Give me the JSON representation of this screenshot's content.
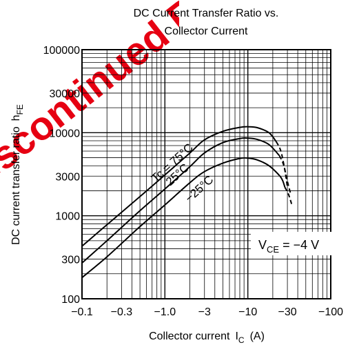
{
  "chart_data": {
    "type": "line",
    "title": "DC Current Transfer Ratio vs.",
    "subtitle": "Collector Current",
    "xlabel_main": "Collector current",
    "xlabel_sym": "I",
    "xlabel_sub": "C",
    "xlabel_unit": "(A)",
    "ylabel_main": "DC current transfer ratio",
    "ylabel_sym": "h",
    "ylabel_sub": "FE",
    "x_scale": "log",
    "y_scale": "log",
    "xlim": [
      -0.1,
      -100
    ],
    "ylim": [
      100,
      100000
    ],
    "grid": true,
    "x_ticks": [
      {
        "value": -0.1,
        "label": "−0.1"
      },
      {
        "value": -0.3,
        "label": "−0.3"
      },
      {
        "value": -1,
        "label": "−1.0"
      },
      {
        "value": -3,
        "label": "−3"
      },
      {
        "value": -10,
        "label": "−10"
      },
      {
        "value": -30,
        "label": "−30"
      },
      {
        "value": -100,
        "label": "−100"
      }
    ],
    "y_ticks": [
      {
        "value": 100,
        "label": "100"
      },
      {
        "value": 300,
        "label": "300"
      },
      {
        "value": 1000,
        "label": "1000"
      },
      {
        "value": 3000,
        "label": "3000"
      },
      {
        "value": 10000,
        "label": "10000"
      },
      {
        "value": 30000,
        "label": "30000"
      },
      {
        "value": 100000,
        "label": "100000"
      }
    ],
    "condition": {
      "prefix": "V",
      "sub": "CE",
      "rest": " = −4 V"
    },
    "series": [
      {
        "name": "Tc = 75°C",
        "points": [
          [
            -0.1,
            430
          ],
          [
            -0.2,
            780
          ],
          [
            -0.5,
            1700
          ],
          [
            -1,
            3100
          ],
          [
            -2,
            5700
          ],
          [
            -3,
            8200
          ],
          [
            -5,
            10400
          ],
          [
            -8,
            11600
          ],
          [
            -10,
            11800
          ],
          [
            -13,
            11500
          ],
          [
            -18,
            10000
          ],
          [
            -22,
            7800
          ]
        ],
        "dashed_points": [
          [
            -22,
            7800
          ],
          [
            -25,
            6000
          ],
          [
            -28,
            3500
          ],
          [
            -30,
            2200
          ]
        ]
      },
      {
        "name": "25°C",
        "points": [
          [
            -0.1,
            270
          ],
          [
            -0.2,
            500
          ],
          [
            -0.5,
            1150
          ],
          [
            -1,
            2100
          ],
          [
            -2,
            3900
          ],
          [
            -3,
            5700
          ],
          [
            -5,
            7600
          ],
          [
            -8,
            8500
          ],
          [
            -10,
            8600
          ],
          [
            -13,
            8300
          ],
          [
            -18,
            7200
          ],
          [
            -24,
            5300
          ]
        ],
        "dashed_points": [
          [
            -24,
            5300
          ],
          [
            -27,
            4100
          ],
          [
            -30,
            2600
          ],
          [
            -33,
            1800
          ]
        ]
      },
      {
        "name": "−25°C",
        "points": [
          [
            -0.1,
            180
          ],
          [
            -0.2,
            320
          ],
          [
            -0.5,
            740
          ],
          [
            -1,
            1350
          ],
          [
            -2,
            2500
          ],
          [
            -3,
            3400
          ],
          [
            -5,
            4300
          ],
          [
            -8,
            4900
          ],
          [
            -10,
            4950
          ],
          [
            -13,
            4700
          ],
          [
            -18,
            4000
          ],
          [
            -25,
            2900
          ],
          [
            -28,
            2200
          ]
        ],
        "dashed_points": [
          [
            -28,
            2200
          ],
          [
            -31,
            1800
          ],
          [
            -34,
            1350
          ]
        ]
      }
    ],
    "series_labels": [
      "Tc = 75°C",
      "25°C",
      "−25°C"
    ]
  },
  "watermark": "Discontinued Product"
}
